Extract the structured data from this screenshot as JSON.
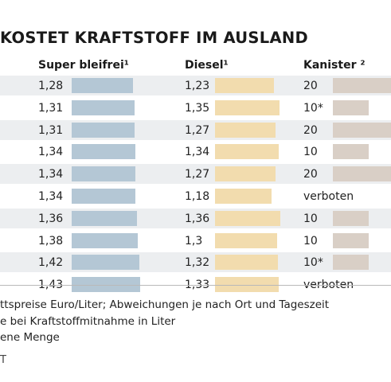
{
  "chart_data": {
    "type": "table",
    "title": "KOSTET KRAFTSTOFF IM AUSLAND",
    "columns": [
      {
        "key": "super",
        "label": "Super bleifrei¹",
        "color": "#b4c7d5"
      },
      {
        "key": "diesel",
        "label": "Diesel¹",
        "color": "#f2dcae"
      },
      {
        "key": "kanister",
        "label": "Kanister ²",
        "color": "#d9cfc6"
      }
    ],
    "rows": [
      {
        "super": "1,28",
        "diesel": "1,23",
        "kanister": "20"
      },
      {
        "super": "1,31",
        "diesel": "1,35",
        "kanister": "10*"
      },
      {
        "super": "1,31",
        "diesel": "1,27",
        "kanister": "20"
      },
      {
        "super": "1,34",
        "diesel": "1,34",
        "kanister": "10"
      },
      {
        "super": "1,34",
        "diesel": "1,27",
        "kanister": "20"
      },
      {
        "super": "1,34",
        "diesel": "1,18",
        "kanister": "verboten"
      },
      {
        "super": "1,36",
        "diesel": "1,36",
        "kanister": "10"
      },
      {
        "super": "1,38",
        "diesel": "1,3",
        "kanister": "10"
      },
      {
        "super": "1,42",
        "diesel": "1,32",
        "kanister": "10*"
      },
      {
        "super": "1,43",
        "diesel": "1,33",
        "kanister": "verboten"
      }
    ],
    "footnotes": [
      "ttspreise Euro/Liter; Abweichungen je nach Ort und Tageszeit",
      "e bei Kraftstoffmitnahme in Liter",
      "ene Menge"
    ],
    "source": "T"
  }
}
